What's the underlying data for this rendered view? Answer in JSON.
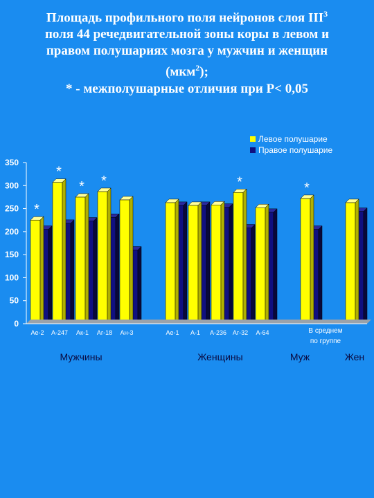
{
  "title_lines": [
    "Площадь профильного поля нейронов слоя III",
    "поля 44 речедвигательной зоны коры в левом и",
    "правом полушариях мозга у мужчин и женщин",
    "(мкм",
    "* - межполушарные отличия при P< 0,05"
  ],
  "title_sup": {
    "layer": "3",
    "unit": "2"
  },
  "title_unit_tail": ");",
  "colors": {
    "left": "#ffff00",
    "right": "#101080",
    "background": "#1a8cf0"
  },
  "chart_data": {
    "type": "bar",
    "ylim": [
      0,
      350
    ],
    "yticks": [
      "0",
      "50",
      "100",
      "150",
      "200",
      "250",
      "300",
      "350"
    ],
    "categories": [
      "Ае-2",
      "А-247",
      "Ак-1",
      "Аг-18",
      "Ан-3",
      "Ае-1",
      "А-1",
      "А-236",
      "Аг-32",
      "А-64",
      "В среднем по группе",
      ""
    ],
    "avg_label_lines": [
      "В среднем",
      "по группе"
    ],
    "series": [
      {
        "name": "Левое полушарие",
        "values": [
          225,
          307,
          275,
          287,
          269,
          263,
          257,
          258,
          285,
          252,
          272,
          263
        ]
      },
      {
        "name": "Правое полушарие",
        "values": [
          205,
          218,
          223,
          231,
          160,
          257,
          257,
          253,
          208,
          242,
          205,
          244
        ]
      }
    ],
    "stars": [
      "*",
      "*",
      "*",
      "*",
      "",
      "",
      "",
      "",
      "*",
      "",
      "*",
      ""
    ],
    "groups": [
      "Мужчины",
      "Женщины",
      "Муж",
      "Жен"
    ],
    "legend_position": "top-right"
  }
}
